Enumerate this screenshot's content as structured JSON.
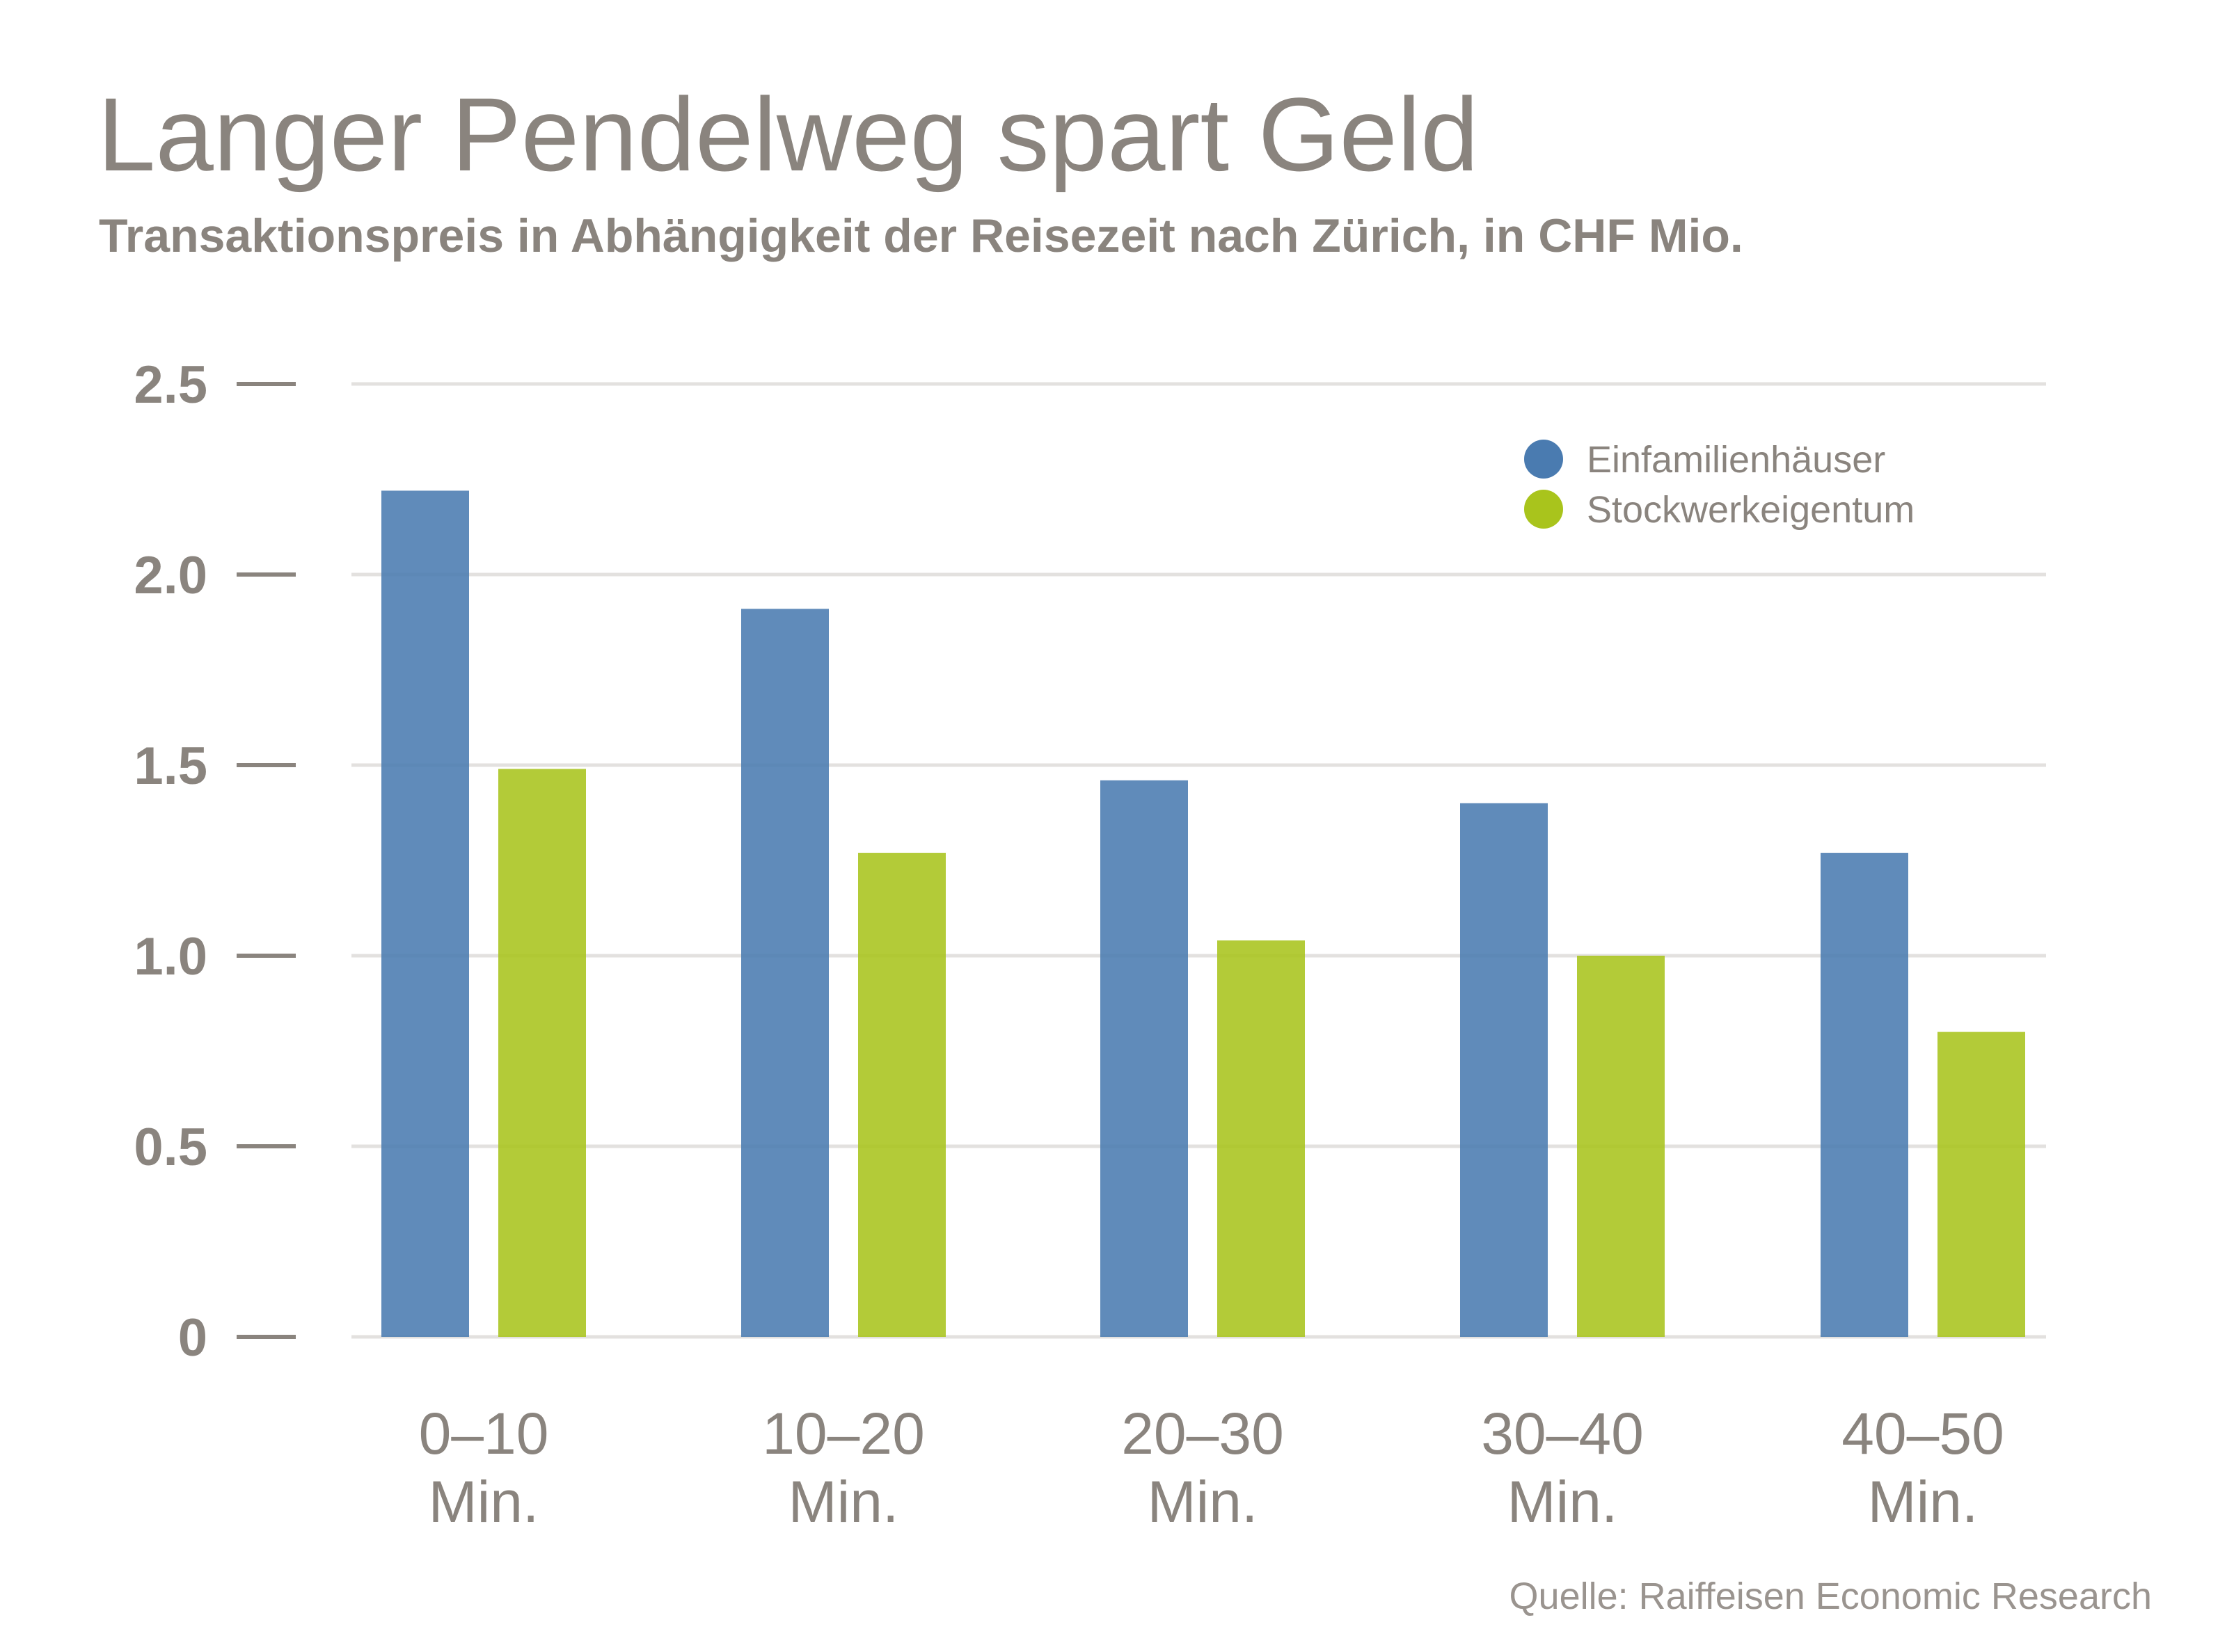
{
  "chart_data": {
    "type": "bar",
    "title": "Langer Pendelweg spart Geld",
    "subtitle": "Transaktionspreis in Abhängigkeit der Reisezeit nach Zürich, in CHF Mio.",
    "source": "Quelle: Raiffeisen Economic Research",
    "categories": [
      [
        "0–10",
        "Min."
      ],
      [
        "10–20",
        "Min."
      ],
      [
        "20–30",
        "Min."
      ],
      [
        "30–40",
        "Min."
      ],
      [
        "40–50",
        "Min."
      ]
    ],
    "series": [
      {
        "name": "Einfamilienhäuser",
        "color": "#4a7bb0",
        "values": [
          2.22,
          1.91,
          1.46,
          1.4,
          1.27
        ]
      },
      {
        "name": "Stockwerkeigentum",
        "color": "#a9c41c",
        "values": [
          1.49,
          1.27,
          1.04,
          1.0,
          0.8
        ]
      }
    ],
    "yticks": [
      {
        "value": 0,
        "label": "0"
      },
      {
        "value": 0.5,
        "label": "0.5"
      },
      {
        "value": 1.0,
        "label": "1.0"
      },
      {
        "value": 1.5,
        "label": "1.5"
      },
      {
        "value": 2.0,
        "label": "2.0"
      },
      {
        "value": 2.5,
        "label": "2.5"
      }
    ],
    "ylim": [
      0,
      2.5
    ],
    "grid": true,
    "legend_position": "top-right"
  }
}
